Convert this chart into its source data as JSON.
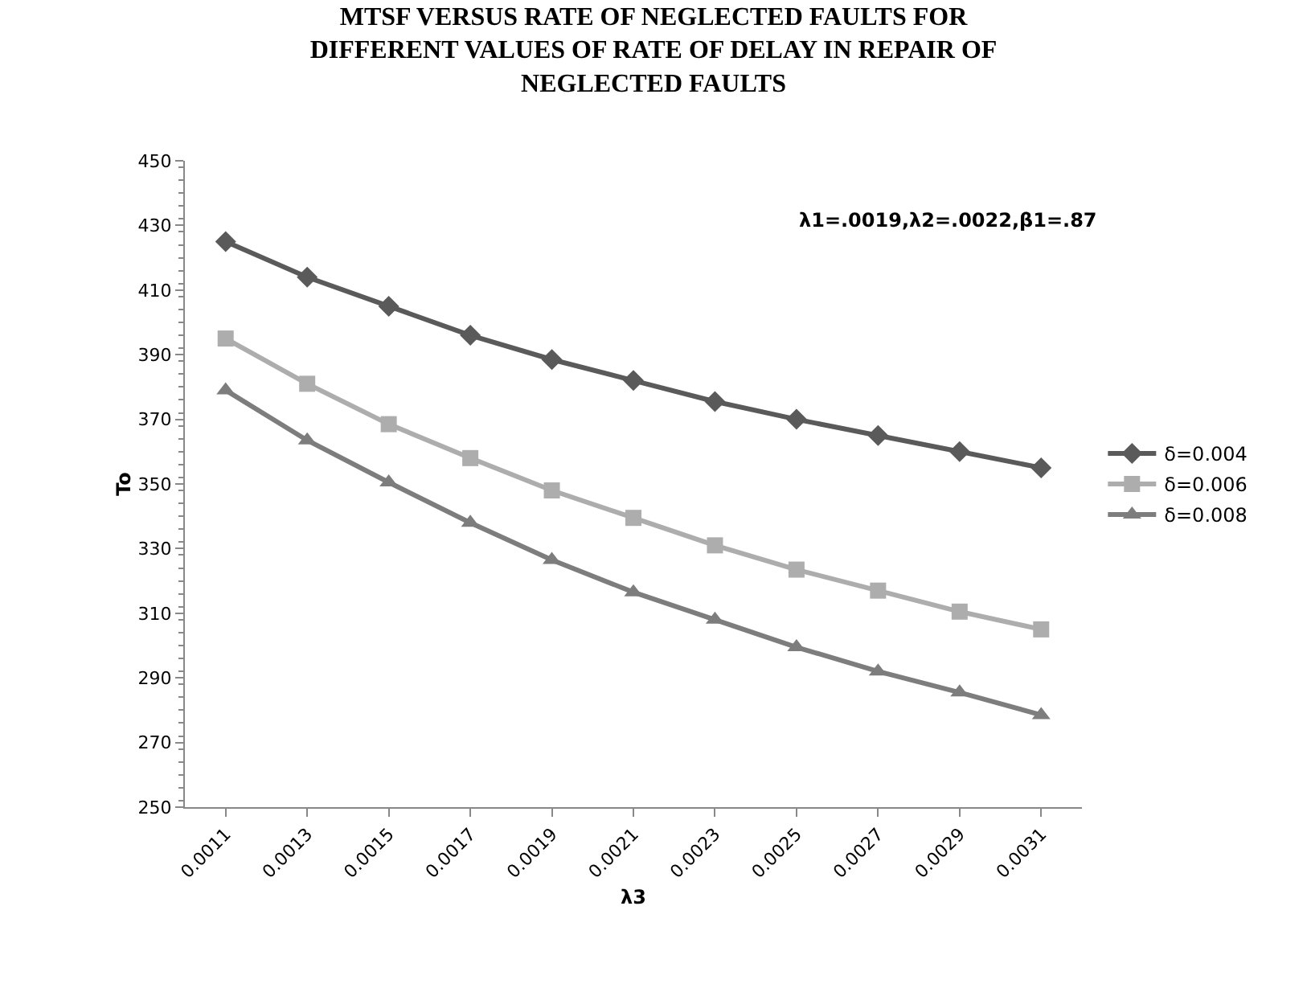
{
  "chart_data": {
    "type": "line",
    "title": "MTSF VERSUS RATE OF NEGLECTED FAULTS FOR DIFFERENT VALUES OF RATE OF DELAY IN REPAIR OF NEGLECTED FAULTS",
    "xlabel": "λ3",
    "ylabel": "To",
    "annotations": [
      "λ1=.0019,λ2=.0022,β1=.87"
    ],
    "categories": [
      "0.0011",
      "0.0013",
      "0.0015",
      "0.0017",
      "0.0019",
      "0.0021",
      "0.0023",
      "0.0025",
      "0.0027",
      "0.0029",
      "0.0031"
    ],
    "series": [
      {
        "name": "δ=0.004",
        "color": "#5a5a5a",
        "marker": "diamond",
        "values": [
          425,
          414,
          405,
          396,
          388.5,
          382,
          375.5,
          370,
          365,
          360,
          355
        ]
      },
      {
        "name": "δ=0.006",
        "color": "#adadad",
        "marker": "square",
        "values": [
          395,
          381,
          368.5,
          358,
          348,
          339.5,
          331,
          323.5,
          317,
          310.5,
          305
        ]
      },
      {
        "name": "δ=0.008",
        "color": "#7d7d7d",
        "marker": "triangle",
        "values": [
          379,
          363.5,
          350.5,
          338,
          326.5,
          316.5,
          308,
          299.5,
          292,
          285.5,
          278.5
        ]
      }
    ],
    "ylim": [
      250,
      450
    ],
    "yticks": [
      250,
      270,
      290,
      310,
      330,
      350,
      370,
      390,
      410,
      430,
      450
    ],
    "grid": false,
    "legend": "right",
    "line_style": "solid"
  }
}
